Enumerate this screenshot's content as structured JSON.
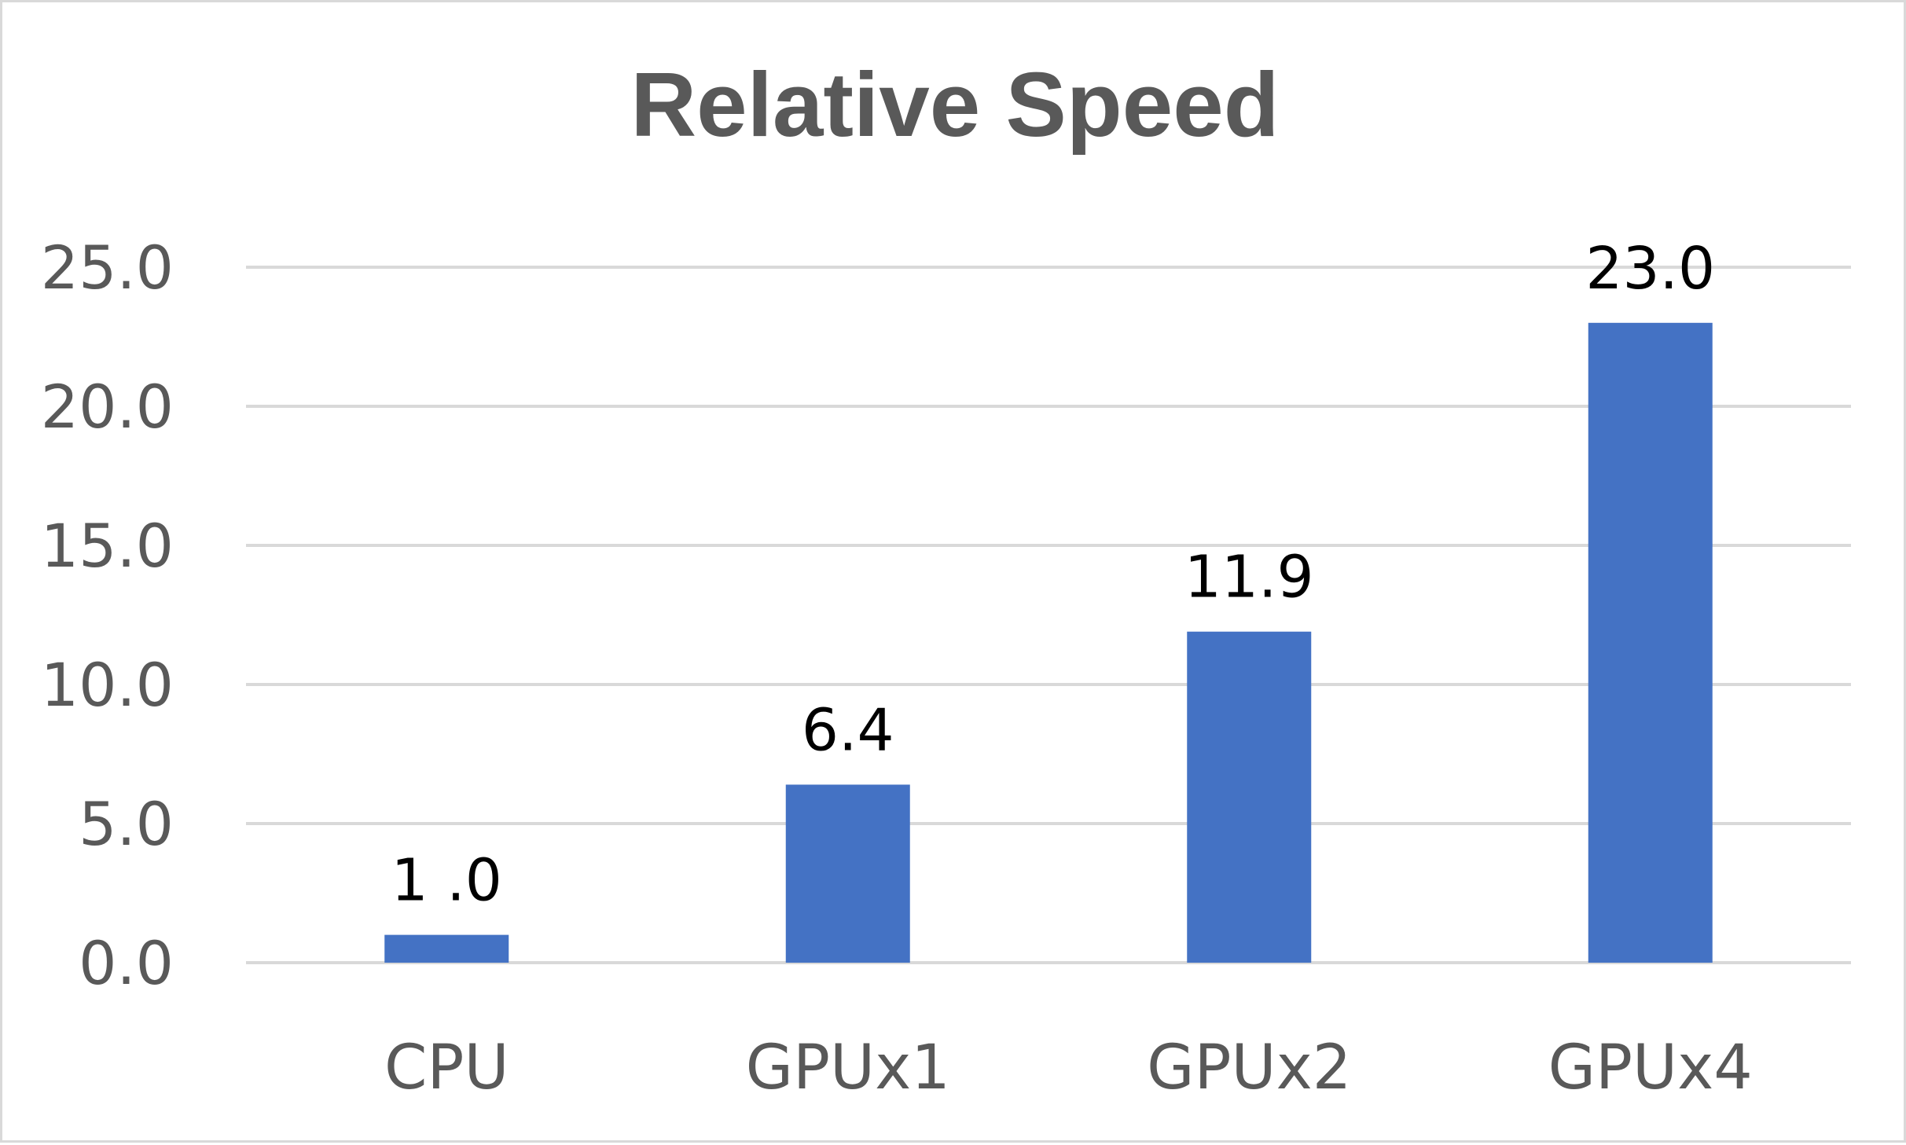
{
  "chart_data": {
    "type": "bar",
    "title": "Relative Speed",
    "xlabel": "",
    "ylabel": "",
    "categories": [
      "CPU",
      "GPUx1",
      "GPUx2",
      "GPUx4"
    ],
    "values": [
      1.0,
      6.4,
      11.9,
      23.0
    ],
    "data_labels": [
      "1 .0",
      "6.4",
      "11.9",
      "23.0"
    ],
    "ylim": [
      0,
      25
    ],
    "y_ticks": [
      "0.0",
      "5.0",
      "10.0",
      "15.0",
      "20.0",
      "25.0"
    ],
    "grid": true,
    "legend": "none",
    "bar_color": "#4472c4",
    "grid_color": "#d9d9d9",
    "text_color": "#595959"
  }
}
